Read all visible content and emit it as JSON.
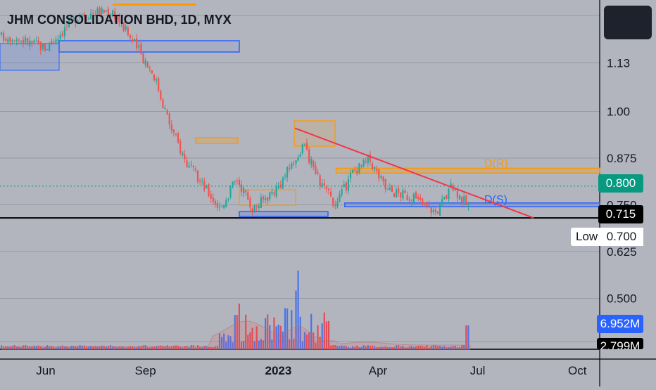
{
  "title": "JHM CONSOLIDATION BHD, 1D, MYX",
  "colors": {
    "background": "#b2b5be",
    "grid": "#9598a1",
    "up": "#26a69a",
    "down": "#ef5350",
    "trendline": "#f23645",
    "resistance": "#ff9800",
    "support": "#2962ff",
    "axis_text": "#131722",
    "current_price": "#089981",
    "volume_badge": "#2962ff"
  },
  "chart_data": {
    "type": "candlestick",
    "x_ticks": [
      "Jun",
      "Sep",
      "2023",
      "Apr",
      "Jul",
      "Oct"
    ],
    "y_ticks": [
      "1.13",
      "1.00",
      "0.875",
      "0.750",
      "0.625",
      "0.500"
    ],
    "price_path": [
      [
        "May 2022",
        1.2
      ],
      [
        "Jun 2022",
        1.17
      ],
      [
        "Jul 2022",
        1.26
      ],
      [
        "Aug 2022",
        1.27
      ],
      [
        "Sep 2022",
        1.17
      ],
      [
        "Sep 2022",
        1.1
      ],
      [
        "Oct 2022",
        0.96
      ],
      [
        "Oct 2022",
        0.86
      ],
      [
        "Nov 2022",
        0.8
      ],
      [
        "Nov 2022",
        0.74
      ],
      [
        "Dec 2022",
        0.82
      ],
      [
        "Dec 2022",
        0.74
      ],
      [
        "Jan 2023",
        0.8
      ],
      [
        "Feb 2023",
        0.91
      ],
      [
        "Feb 2023",
        0.81
      ],
      [
        "Mar 2023",
        0.75
      ],
      [
        "Mar 2023",
        0.84
      ],
      [
        "Apr 2023",
        0.87
      ],
      [
        "Apr 2023",
        0.79
      ],
      [
        "May 2023",
        0.77
      ],
      [
        "Jun 2023",
        0.73
      ],
      [
        "Jun 2023",
        0.8
      ],
      [
        "Jul 2023",
        0.74
      ],
      [
        "Jul 2023",
        0.8
      ]
    ],
    "current_price": "0.800",
    "reference_line": "0.715",
    "low": {
      "label": "Low",
      "value": "0.700"
    },
    "volume": {
      "last": "6.952M",
      "average": "2.799M"
    },
    "zones": [
      {
        "type": "resistance",
        "label": "D(R)",
        "from": "Feb 2023",
        "to": "Oct 2023",
        "low": 0.835,
        "high": 0.848
      },
      {
        "type": "support",
        "label": "D(S)",
        "from": "Mar 2023",
        "to": "Oct 2023",
        "low": 0.745,
        "high": 0.755
      }
    ],
    "trendline": {
      "from": [
        "Feb 2023",
        0.955
      ],
      "to": [
        "Sep 2023",
        0.715
      ]
    }
  }
}
